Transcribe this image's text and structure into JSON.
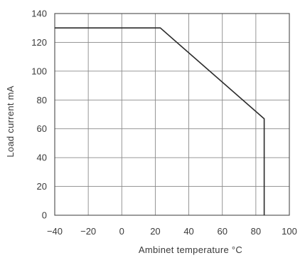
{
  "chart_data": {
    "type": "line",
    "title": "",
    "xlabel": "Ambinet temperature °C",
    "ylabel": "Load current mA",
    "xlim": [
      -40,
      100
    ],
    "ylim": [
      0,
      140
    ],
    "xticks": [
      -40,
      -20,
      0,
      20,
      40,
      60,
      80,
      100
    ],
    "yticks": [
      0,
      20,
      40,
      60,
      80,
      100,
      120,
      140
    ],
    "x_tick_labels": [
      "−40",
      "−20",
      "0",
      "20",
      "40",
      "60",
      "80",
      "100"
    ],
    "y_tick_labels": [
      "0",
      "20",
      "40",
      "60",
      "80",
      "100",
      "120",
      "140"
    ],
    "grid": true,
    "series": [
      {
        "x": [
          -40,
          23,
          85,
          85
        ],
        "y": [
          130,
          130,
          67,
          0
        ]
      }
    ]
  }
}
